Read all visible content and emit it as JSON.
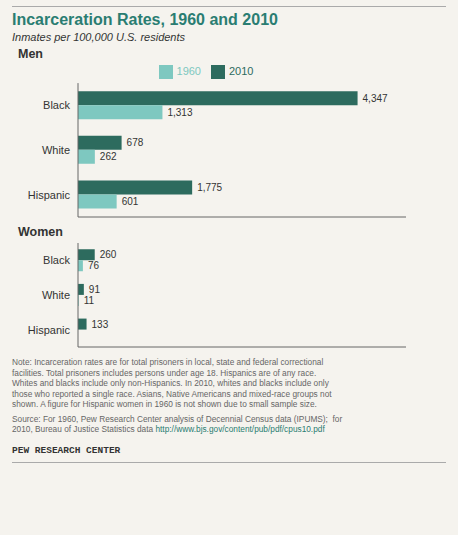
{
  "title": "Incarceration Rates, 1960 and 2010",
  "subtitle": "Inmates per 100,000 U.S. residents",
  "title_color": "#2a7d72",
  "text_color": "#333333",
  "background_color": "#f5f3ee",
  "chart_data": [
    {
      "type": "bar",
      "orientation": "horizontal",
      "title": "Men",
      "categories": [
        "Black",
        "White",
        "Hispanic"
      ],
      "series": [
        {
          "name": "2010",
          "color": "#2d6b5e",
          "values": [
            4347,
            678,
            1775
          ],
          "value_labels": [
            "4,347",
            "678",
            "1,775"
          ]
        },
        {
          "name": "1960",
          "color": "#7ec8c0",
          "values": [
            1313,
            262,
            601
          ],
          "value_labels": [
            "1,313",
            "262",
            "601"
          ]
        }
      ],
      "xlim": [
        0,
        5100
      ],
      "data_labels": true,
      "tick_labels": "y",
      "legend": "top"
    },
    {
      "type": "bar",
      "orientation": "horizontal",
      "title": "Women",
      "categories": [
        "Black",
        "White",
        "Hispanic"
      ],
      "series": [
        {
          "name": "2010",
          "color": "#2d6b5e",
          "values": [
            260,
            91,
            133
          ],
          "value_labels": [
            "260",
            "91",
            "133"
          ]
        },
        {
          "name": "1960",
          "color": "#7ec8c0",
          "values": [
            76,
            11,
            null
          ],
          "value_labels": [
            "76",
            "11",
            null
          ]
        }
      ],
      "xlim": [
        0,
        5100
      ],
      "data_labels": true,
      "tick_labels": "y"
    }
  ],
  "annotations": [
    {
      "text": "Note: Incarceration rates are for total prisoners in local, state and federal correctional\nfacilities. Total prisoners includes persons under age 18. Hispanics are of any race.\nWhites and blacks include only non-Hispanics. In 2010, whites and blacks include only\nthose who reported a single race. Asians, Native Americans and mixed-race groups not\nshown. A figure for Hispanic women in 1960 is not shown due to small sample size.",
      "color": "#666666"
    },
    {
      "text": "Source: For 1960, Pew Research Center analysis of Decennial Census data (IPUMS);  for",
      "color": "#666666"
    },
    {
      "text": "2010, Bureau of Justice Statistics data ",
      "color": "#666666",
      "link": "http://www.bjs.gov/content/pub/pdf/cpus10.pdf",
      "link_color": "#2a7d72"
    }
  ],
  "footer": "PEW RESEARCH CENTER"
}
